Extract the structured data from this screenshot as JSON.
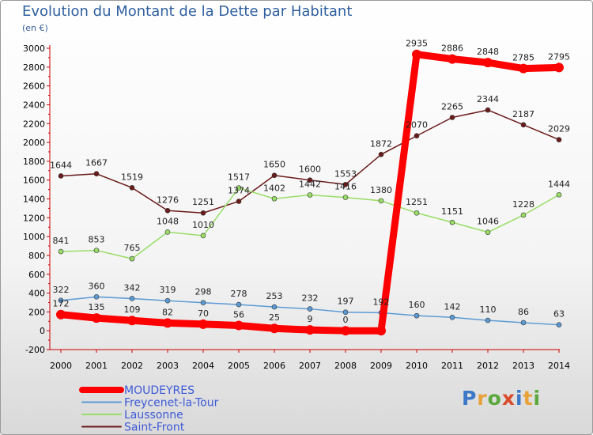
{
  "chart_data": {
    "type": "line",
    "title": "Evolution du Montant de la Dette par Habitant",
    "unit_label": "(en €)",
    "x": [
      "2000",
      "2001",
      "2002",
      "2003",
      "2004",
      "2005",
      "2006",
      "2007",
      "2008",
      "2009",
      "2010",
      "2011",
      "2012",
      "2013",
      "2014"
    ],
    "y_ticks": [
      "-200",
      "0",
      "200",
      "400",
      "600",
      "800",
      "1000",
      "1200",
      "1400",
      "1600",
      "1800",
      "2000",
      "2200",
      "2400",
      "2600",
      "2800",
      "3000"
    ],
    "ylim": [
      -200,
      3000
    ],
    "grid": false,
    "legend_position": "bottom-left",
    "series": [
      {
        "name": "Saint-Front",
        "color": "#6b1a1a",
        "values": [
          1644,
          1667,
          1519,
          1276,
          1251,
          1374,
          1650,
          1600,
          1553,
          1872,
          2070,
          2265,
          2344,
          2187,
          2029
        ],
        "labels": [
          "1644",
          "1667",
          "1519",
          "1276",
          "1251",
          "1374",
          "1650",
          "1600",
          "1553",
          "1872",
          "2070",
          "2265",
          "2344",
          "2187",
          "2029"
        ]
      },
      {
        "name": "Laussonne",
        "color": "#99dd66",
        "values": [
          841,
          853,
          765,
          1048,
          1010,
          1517,
          1402,
          1442,
          1416,
          1380,
          1251,
          1151,
          1046,
          1228,
          1444
        ],
        "labels": [
          "841",
          "853",
          "765",
          "1048",
          "1010",
          "1517",
          "1402",
          "1442",
          "1416",
          "1380",
          "1251",
          "1151",
          "1046",
          "1228",
          "1444"
        ]
      },
      {
        "name": "Freycenet-la-Tour",
        "color": "#5b9bd5",
        "values": [
          322,
          360,
          342,
          319,
          298,
          278,
          253,
          232,
          197,
          192,
          160,
          142,
          110,
          86,
          63
        ],
        "labels": [
          "322",
          "360",
          "342",
          "319",
          "298",
          "278",
          "253",
          "232",
          "197",
          "192",
          "160",
          "142",
          "110",
          "86",
          "63"
        ]
      },
      {
        "name": "MOUDEYRES",
        "color": "#ff0000",
        "values": [
          172,
          135,
          109,
          82,
          70,
          56,
          25,
          9,
          0,
          0,
          2935,
          2886,
          2848,
          2785,
          2795
        ],
        "labels": [
          "172",
          "135",
          "109",
          "82",
          "70",
          "56",
          "25",
          "9",
          "0",
          "",
          "2935",
          "2886",
          "2848",
          "2785",
          "2795"
        ]
      }
    ]
  },
  "legend": [
    {
      "name": "MOUDEYRES",
      "color": "#ff0000"
    },
    {
      "name": "Freycenet-la-Tour",
      "color": "#5b9bd5"
    },
    {
      "name": "Laussonne",
      "color": "#99dd66"
    },
    {
      "name": "Saint-Front",
      "color": "#6b1a1a"
    }
  ],
  "logo": {
    "text": "Proxiti"
  }
}
